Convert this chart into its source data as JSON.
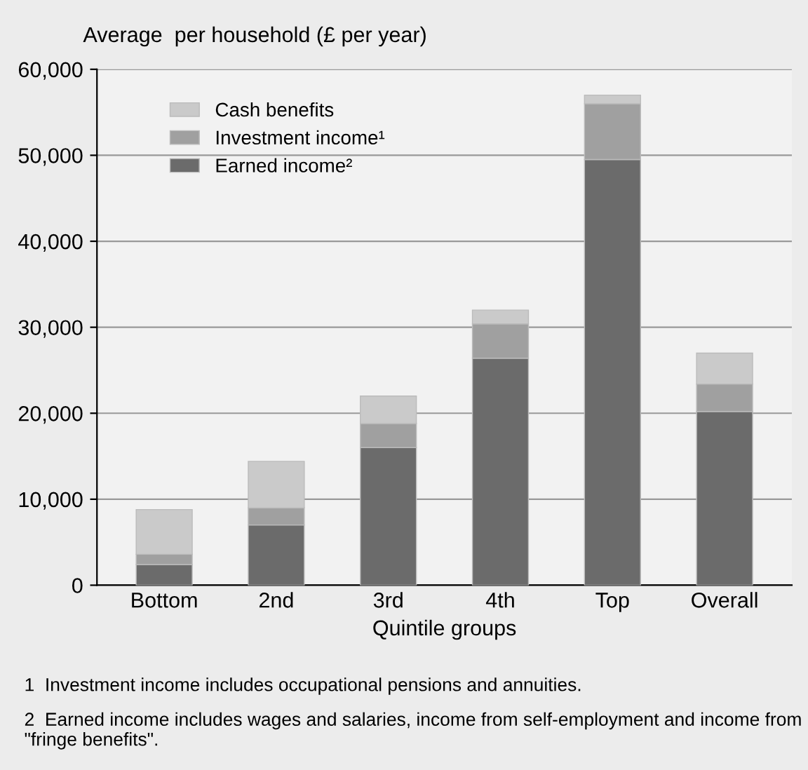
{
  "chart_data": {
    "type": "bar",
    "stacked": true,
    "title": "Average  per household (£ per year)",
    "xlabel": "Quintile groups",
    "categories": [
      "Bottom",
      "2nd",
      "3rd",
      "4th",
      "Top",
      "Overall"
    ],
    "series": [
      {
        "name": "Earned income²",
        "color": "#6b6b6b",
        "values": [
          2400,
          7000,
          16000,
          26400,
          49500,
          20200
        ]
      },
      {
        "name": "Investment income¹",
        "color": "#a0a0a0",
        "values": [
          1200,
          2000,
          2800,
          4000,
          6500,
          3200
        ]
      },
      {
        "name": "Cash benefits",
        "color": "#cacaca",
        "values": [
          5200,
          5400,
          3200,
          1600,
          1000,
          3600
        ]
      }
    ],
    "ylim": [
      0,
      60000
    ],
    "yticks": [
      {
        "value": 0,
        "label": "0"
      },
      {
        "value": 10000,
        "label": "10,000"
      },
      {
        "value": 20000,
        "label": "20,000"
      },
      {
        "value": 30000,
        "label": "30,000"
      },
      {
        "value": 40000,
        "label": "40,000"
      },
      {
        "value": 50000,
        "label": "50,000"
      },
      {
        "value": 60000,
        "label": "60,000"
      }
    ],
    "grid": "y",
    "legend": "top left",
    "annotations": [
      "1  Investment income includes occupational pensions and annuities.",
      "2  Earned income includes wages and salaries, income from self-employment and income from \"fringe benefits\"."
    ]
  }
}
